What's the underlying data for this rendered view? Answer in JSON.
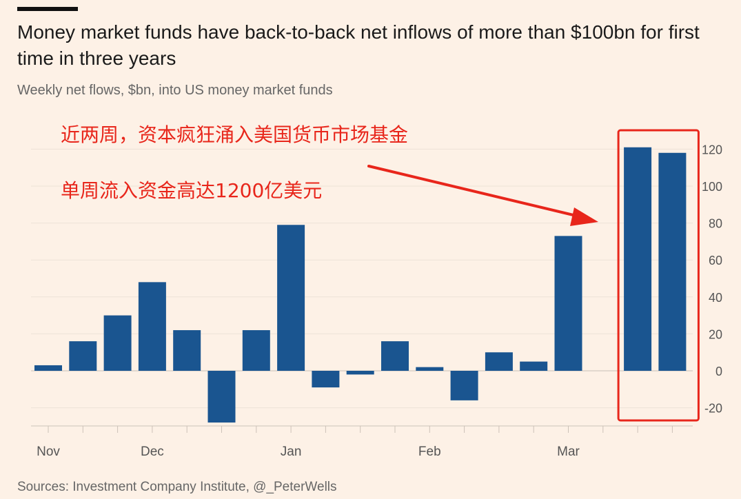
{
  "header": {
    "title": "Money market funds have back-to-back net inflows of more than $100bn for first time in three years",
    "subtitle": "Weekly net flows, $bn, into US money market funds"
  },
  "annotations": {
    "line1": "近两周，资本疯狂涌入美国货币市场基金",
    "line2": "单周流入资金高达1200亿美元",
    "color": "#e8261b"
  },
  "footer": {
    "source": "Sources: Investment Company Institute, @_PeterWells"
  },
  "chart_data": {
    "type": "bar",
    "title": "Money market funds have back-to-back net inflows of more than $100bn for first time in three years",
    "subtitle": "Weekly net flows, $bn, into US money market funds",
    "xlabel": "",
    "ylabel": "",
    "ylim": [
      -30,
      120
    ],
    "y_ticks": [
      -20,
      0,
      20,
      40,
      60,
      80,
      100,
      120
    ],
    "x_tick_labels": [
      "Nov",
      "Dec",
      "Jan",
      "Feb",
      "Mar"
    ],
    "x_tick_label_bar_index": [
      0,
      3,
      7,
      11,
      15
    ],
    "values": [
      3,
      16,
      30,
      48,
      22,
      -28,
      22,
      79,
      -9,
      -2,
      16,
      2,
      -16,
      10,
      5,
      73,
      null,
      121,
      118
    ],
    "bar_color": "#1a5590",
    "grid": true,
    "y_axis_position": "right",
    "highlight": {
      "from_index": 17,
      "to_index": 18,
      "color": "#e8261b"
    }
  }
}
